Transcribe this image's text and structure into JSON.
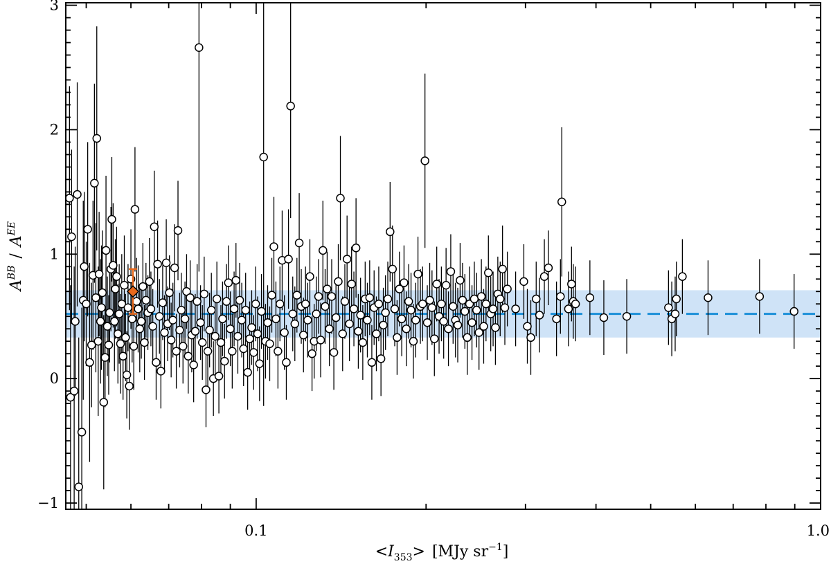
{
  "chart_data": {
    "type": "scatter",
    "x_scale": "log",
    "xlim": [
      0.046,
      1.0
    ],
    "ylim": [
      -1.05,
      3.02
    ],
    "grid": false,
    "x_ticks": [
      {
        "v": 0.1,
        "label": "0.1"
      },
      {
        "v": 1.0,
        "label": "1.0"
      }
    ],
    "y_ticks": [
      {
        "v": -1,
        "label": "−1"
      },
      {
        "v": 0,
        "label": "0"
      },
      {
        "v": 1,
        "label": "1"
      },
      {
        "v": 2,
        "label": "2"
      },
      {
        "v": 3,
        "label": "3"
      }
    ],
    "xlabel": {
      "open": "<",
      "var": "I",
      "sub": "353",
      "close": ">",
      "unit_open": "[MJy sr",
      "unit_exp": "−1",
      "unit_close": "]"
    },
    "ylabel": {
      "base1": "A",
      "sup1": "BB",
      "sep": "/",
      "base2": "A",
      "sup2": "EE"
    },
    "reference": {
      "mean": 0.52,
      "band": [
        0.33,
        0.71
      ],
      "band_color": "#cfe3f7",
      "line_color": "#1a8fd8"
    },
    "highlight": {
      "x": 0.0605,
      "y": 0.7,
      "yerr": 0.18,
      "color": "#e8691c"
    },
    "points": [
      [
        0.0467,
        1.45,
        0.9
      ],
      [
        0.0469,
        -0.15,
        0.9
      ],
      [
        0.0471,
        1.14,
        0.7
      ],
      [
        0.0476,
        -0.1,
        1.0
      ],
      [
        0.0478,
        0.46,
        0.6
      ],
      [
        0.0482,
        1.48,
        0.9
      ],
      [
        0.0485,
        -0.87,
        1.2
      ],
      [
        0.0491,
        -0.43,
        1.0
      ],
      [
        0.0494,
        0.63,
        0.8
      ],
      [
        0.0496,
        0.9,
        0.6
      ],
      [
        0.05,
        0.6,
        0.5
      ],
      [
        0.0503,
        1.2,
        0.7
      ],
      [
        0.0507,
        0.13,
        0.8
      ],
      [
        0.0511,
        0.27,
        0.5
      ],
      [
        0.0514,
        0.83,
        0.6
      ],
      [
        0.0517,
        1.57,
        0.8
      ],
      [
        0.052,
        0.65,
        0.6
      ],
      [
        0.0522,
        1.93,
        0.9
      ],
      [
        0.0525,
        0.3,
        0.6
      ],
      [
        0.0527,
        0.84,
        0.5
      ],
      [
        0.053,
        0.46,
        0.5
      ],
      [
        0.0532,
        0.57,
        0.5
      ],
      [
        0.0534,
        0.69,
        0.5
      ],
      [
        0.0537,
        -0.19,
        0.7
      ],
      [
        0.054,
        0.17,
        0.4
      ],
      [
        0.0542,
        1.03,
        0.6
      ],
      [
        0.0545,
        0.42,
        0.4
      ],
      [
        0.0548,
        0.27,
        0.4
      ],
      [
        0.055,
        0.53,
        0.4
      ],
      [
        0.0553,
        0.88,
        0.5
      ],
      [
        0.0555,
        1.28,
        0.5
      ],
      [
        0.0558,
        0.91,
        0.5
      ],
      [
        0.0561,
        0.46,
        0.4
      ],
      [
        0.0563,
        0.72,
        0.4
      ],
      [
        0.0566,
        0.82,
        0.4
      ],
      [
        0.0569,
        0.36,
        0.4
      ],
      [
        0.0572,
        0.52,
        0.4
      ],
      [
        0.0575,
        0.28,
        0.4
      ],
      [
        0.0578,
        0.6,
        0.4
      ],
      [
        0.0581,
        0.18,
        0.35
      ],
      [
        0.0584,
        0.75,
        0.4
      ],
      [
        0.0587,
        0.33,
        0.35
      ],
      [
        0.059,
        0.03,
        0.35
      ],
      [
        0.0593,
        0.57,
        0.35
      ],
      [
        0.0596,
        -0.06,
        0.35
      ],
      [
        0.06,
        0.8,
        0.4
      ],
      [
        0.0603,
        0.48,
        0.35
      ],
      [
        0.0607,
        0.26,
        0.35
      ],
      [
        0.061,
        1.36,
        0.5
      ],
      [
        0.0614,
        0.62,
        0.35
      ],
      [
        0.0618,
        0.56,
        0.35
      ],
      [
        0.0622,
        0.4,
        0.35
      ],
      [
        0.0626,
        0.46,
        0.3
      ],
      [
        0.063,
        0.74,
        0.35
      ],
      [
        0.0634,
        0.29,
        0.3
      ],
      [
        0.0638,
        0.63,
        0.3
      ],
      [
        0.0643,
        0.53,
        0.3
      ],
      [
        0.0647,
        0.78,
        0.35
      ],
      [
        0.0651,
        0.56,
        0.3
      ],
      [
        0.0656,
        0.42,
        0.3
      ],
      [
        0.066,
        1.22,
        0.45
      ],
      [
        0.0665,
        0.13,
        0.3
      ],
      [
        0.0669,
        0.92,
        0.35
      ],
      [
        0.0674,
        0.5,
        0.3
      ],
      [
        0.0678,
        0.06,
        0.3
      ],
      [
        0.0683,
        0.61,
        0.3
      ],
      [
        0.0688,
        0.37,
        0.3
      ],
      [
        0.0693,
        0.93,
        0.35
      ],
      [
        0.0697,
        0.44,
        0.3
      ],
      [
        0.0702,
        0.69,
        0.3
      ],
      [
        0.0707,
        0.31,
        0.3
      ],
      [
        0.0712,
        0.47,
        0.3
      ],
      [
        0.0717,
        0.89,
        0.35
      ],
      [
        0.0722,
        0.22,
        0.3
      ],
      [
        0.0727,
        1.19,
        0.4
      ],
      [
        0.0732,
        0.39,
        0.3
      ],
      [
        0.0737,
        0.55,
        0.3
      ],
      [
        0.0742,
        0.26,
        0.3
      ],
      [
        0.0748,
        0.48,
        0.3
      ],
      [
        0.0753,
        0.7,
        0.3
      ],
      [
        0.0758,
        0.18,
        0.3
      ],
      [
        0.0764,
        0.65,
        0.3
      ],
      [
        0.0769,
        0.35,
        0.3
      ],
      [
        0.0775,
        0.11,
        0.3
      ],
      [
        0.078,
        0.38,
        0.3
      ],
      [
        0.0786,
        0.62,
        0.3
      ],
      [
        0.0792,
        2.66,
        1.8
      ],
      [
        0.0797,
        0.45,
        0.3
      ],
      [
        0.0803,
        0.29,
        0.3
      ],
      [
        0.0809,
        0.68,
        0.3
      ],
      [
        0.0815,
        -0.09,
        0.3
      ],
      [
        0.0821,
        0.22,
        0.3
      ],
      [
        0.0827,
        0.39,
        0.3
      ],
      [
        0.0833,
        0.55,
        0.3
      ],
      [
        0.084,
        0.0,
        0.3
      ],
      [
        0.0846,
        0.34,
        0.3
      ],
      [
        0.0852,
        0.64,
        0.3
      ],
      [
        0.0859,
        0.02,
        0.3
      ],
      [
        0.0866,
        0.29,
        0.3
      ],
      [
        0.0872,
        0.48,
        0.3
      ],
      [
        0.0879,
        0.14,
        0.3
      ],
      [
        0.0886,
        0.62,
        0.3
      ],
      [
        0.0893,
        0.77,
        0.3
      ],
      [
        0.09,
        0.4,
        0.3
      ],
      [
        0.0907,
        0.22,
        0.3
      ],
      [
        0.0914,
        0.56,
        0.3
      ],
      [
        0.0921,
        0.79,
        0.3
      ],
      [
        0.0928,
        0.34,
        0.3
      ],
      [
        0.0935,
        0.63,
        0.3
      ],
      [
        0.0943,
        0.47,
        0.3
      ],
      [
        0.095,
        0.24,
        0.3
      ],
      [
        0.0958,
        0.55,
        0.3
      ],
      [
        0.0966,
        0.05,
        0.3
      ],
      [
        0.0974,
        0.32,
        0.3
      ],
      [
        0.0982,
        0.41,
        0.3
      ],
      [
        0.099,
        0.21,
        0.3
      ],
      [
        0.0998,
        0.6,
        0.3
      ],
      [
        0.1006,
        0.36,
        0.3
      ],
      [
        0.1014,
        0.12,
        0.3
      ],
      [
        0.1022,
        0.54,
        0.3
      ],
      [
        0.1031,
        1.78,
        2.0
      ],
      [
        0.1039,
        0.3,
        0.3
      ],
      [
        0.1048,
        0.45,
        0.3
      ],
      [
        0.1057,
        0.28,
        0.3
      ],
      [
        0.1066,
        0.67,
        0.3
      ],
      [
        0.1075,
        1.06,
        0.4
      ],
      [
        0.1084,
        0.48,
        0.3
      ],
      [
        0.1093,
        0.22,
        0.3
      ],
      [
        0.1102,
        0.6,
        0.3
      ],
      [
        0.1112,
        0.95,
        0.4
      ],
      [
        0.1122,
        0.37,
        0.3
      ],
      [
        0.1131,
        0.13,
        0.3
      ],
      [
        0.1141,
        0.96,
        0.4
      ],
      [
        0.1151,
        2.19,
        0.9
      ],
      [
        0.1161,
        0.52,
        0.3
      ],
      [
        0.1171,
        0.44,
        0.3
      ],
      [
        0.1181,
        0.67,
        0.3
      ],
      [
        0.1192,
        1.09,
        0.4
      ],
      [
        0.1202,
        0.58,
        0.3
      ],
      [
        0.1213,
        0.35,
        0.3
      ],
      [
        0.1223,
        0.6,
        0.3
      ],
      [
        0.1234,
        0.47,
        0.3
      ],
      [
        0.1245,
        0.82,
        0.3
      ],
      [
        0.1256,
        0.2,
        0.3
      ],
      [
        0.1267,
        0.3,
        0.3
      ],
      [
        0.1278,
        0.52,
        0.3
      ],
      [
        0.129,
        0.66,
        0.3
      ],
      [
        0.1301,
        0.31,
        0.3
      ],
      [
        0.1313,
        1.03,
        0.4
      ],
      [
        0.1325,
        0.58,
        0.3
      ],
      [
        0.1336,
        0.72,
        0.3
      ],
      [
        0.1348,
        0.4,
        0.3
      ],
      [
        0.1361,
        0.66,
        0.3
      ],
      [
        0.1373,
        0.21,
        0.3
      ],
      [
        0.1385,
        0.49,
        0.3
      ],
      [
        0.1398,
        0.78,
        0.3
      ],
      [
        0.141,
        1.45,
        0.5
      ],
      [
        0.1423,
        0.36,
        0.3
      ],
      [
        0.1436,
        0.62,
        0.3
      ],
      [
        0.1449,
        0.96,
        0.35
      ],
      [
        0.1463,
        0.44,
        0.3
      ],
      [
        0.1476,
        0.76,
        0.3
      ],
      [
        0.149,
        0.56,
        0.3
      ],
      [
        0.1503,
        1.05,
        0.4
      ],
      [
        0.1517,
        0.38,
        0.3
      ],
      [
        0.1531,
        0.51,
        0.3
      ],
      [
        0.1545,
        0.29,
        0.3
      ],
      [
        0.156,
        0.64,
        0.3
      ],
      [
        0.1574,
        0.47,
        0.3
      ],
      [
        0.1589,
        0.65,
        0.3
      ],
      [
        0.1603,
        0.13,
        0.3
      ],
      [
        0.1618,
        0.57,
        0.3
      ],
      [
        0.1633,
        0.36,
        0.3
      ],
      [
        0.1649,
        0.6,
        0.3
      ],
      [
        0.1664,
        0.16,
        0.3
      ],
      [
        0.168,
        0.43,
        0.3
      ],
      [
        0.1695,
        0.53,
        0.3
      ],
      [
        0.1711,
        0.64,
        0.3
      ],
      [
        0.1727,
        1.18,
        0.4
      ],
      [
        0.1744,
        0.88,
        0.35
      ],
      [
        0.176,
        0.56,
        0.3
      ],
      [
        0.1777,
        0.33,
        0.3
      ],
      [
        0.1794,
        0.72,
        0.3
      ],
      [
        0.1811,
        0.48,
        0.3
      ],
      [
        0.1828,
        0.77,
        0.3
      ],
      [
        0.1845,
        0.4,
        0.3
      ],
      [
        0.1863,
        0.62,
        0.3
      ],
      [
        0.1881,
        0.55,
        0.3
      ],
      [
        0.1899,
        0.3,
        0.3
      ],
      [
        0.1917,
        0.47,
        0.3
      ],
      [
        0.1935,
        0.84,
        0.3
      ],
      [
        0.1954,
        0.58,
        0.3
      ],
      [
        0.1972,
        0.6,
        0.3
      ],
      [
        0.1991,
        1.75,
        0.7
      ],
      [
        0.201,
        0.45,
        0.3
      ],
      [
        0.203,
        0.63,
        0.3
      ],
      [
        0.2049,
        0.57,
        0.3
      ],
      [
        0.2069,
        0.32,
        0.3
      ],
      [
        0.2089,
        0.76,
        0.3
      ],
      [
        0.2109,
        0.5,
        0.3
      ],
      [
        0.2129,
        0.6,
        0.3
      ],
      [
        0.2149,
        0.46,
        0.3
      ],
      [
        0.217,
        0.75,
        0.3
      ],
      [
        0.2191,
        0.4,
        0.3
      ],
      [
        0.2212,
        0.86,
        0.3
      ],
      [
        0.2233,
        0.58,
        0.3
      ],
      [
        0.2255,
        0.47,
        0.3
      ],
      [
        0.2276,
        0.43,
        0.3
      ],
      [
        0.2298,
        0.79,
        0.3
      ],
      [
        0.2321,
        0.63,
        0.3
      ],
      [
        0.2343,
        0.54,
        0.3
      ],
      [
        0.2366,
        0.33,
        0.3
      ],
      [
        0.2388,
        0.6,
        0.3
      ],
      [
        0.2412,
        0.45,
        0.3
      ],
      [
        0.2435,
        0.64,
        0.3
      ],
      [
        0.2458,
        0.55,
        0.3
      ],
      [
        0.2482,
        0.37,
        0.3
      ],
      [
        0.2506,
        0.66,
        0.3
      ],
      [
        0.253,
        0.42,
        0.3
      ],
      [
        0.2554,
        0.6,
        0.3
      ],
      [
        0.2579,
        0.85,
        0.3
      ],
      [
        0.2604,
        0.52,
        0.3
      ],
      [
        0.2629,
        0.56,
        0.3
      ],
      [
        0.2654,
        0.41,
        0.3
      ],
      [
        0.268,
        0.68,
        0.3
      ],
      [
        0.2706,
        0.64,
        0.3
      ],
      [
        0.2732,
        0.88,
        0.35
      ],
      [
        0.2758,
        0.57,
        0.3
      ],
      [
        0.2786,
        0.72,
        0.3
      ],
      [
        0.2882,
        0.56,
        0.3
      ],
      [
        0.298,
        0.78,
        0.3
      ],
      [
        0.3023,
        0.42,
        0.3
      ],
      [
        0.3066,
        0.33,
        0.3
      ],
      [
        0.3134,
        0.64,
        0.3
      ],
      [
        0.3177,
        0.51,
        0.3
      ],
      [
        0.324,
        0.82,
        0.3
      ],
      [
        0.3294,
        0.89,
        0.3
      ],
      [
        0.3405,
        0.48,
        0.3
      ],
      [
        0.346,
        0.66,
        0.3
      ],
      [
        0.3479,
        1.42,
        0.6
      ],
      [
        0.3575,
        0.56,
        0.3
      ],
      [
        0.362,
        0.76,
        0.3
      ],
      [
        0.3646,
        0.62,
        0.3
      ],
      [
        0.368,
        0.6,
        0.3
      ],
      [
        0.3902,
        0.65,
        0.3
      ],
      [
        0.413,
        0.49,
        0.3
      ],
      [
        0.4535,
        0.5,
        0.3
      ],
      [
        0.5377,
        0.57,
        0.3
      ],
      [
        0.5449,
        0.48,
        0.3
      ],
      [
        0.5525,
        0.52,
        0.3
      ],
      [
        0.5552,
        0.64,
        0.3
      ],
      [
        0.569,
        0.82,
        0.3
      ],
      [
        0.6318,
        0.65,
        0.3
      ],
      [
        0.7796,
        0.66,
        0.3
      ],
      [
        0.8975,
        0.54,
        0.3
      ]
    ]
  }
}
